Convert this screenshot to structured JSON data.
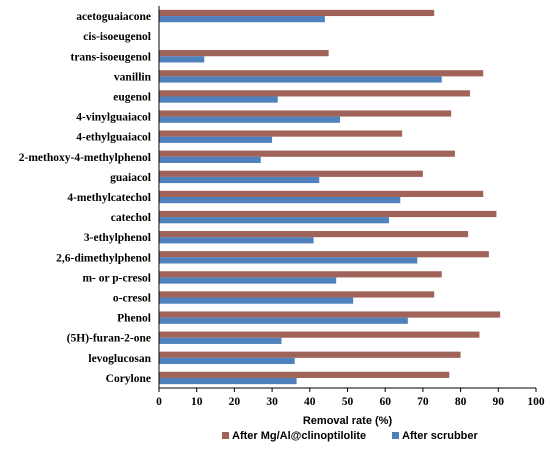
{
  "chart_data": {
    "type": "bar",
    "orientation": "horizontal",
    "categories": [
      "acetoguaiacone",
      "cis-isoeugenol",
      "trans-isoeugenol",
      "vanillin",
      "eugenol",
      "4-vinylguaiacol",
      "4-ethylguaiacol",
      "2-methoxy-4-methylphenol",
      "guaiacol",
      "4-methylcatechol",
      "catechol",
      "3-ethylphenol",
      "2,6-dimethylphenol",
      "m- or p-cresol",
      "o-cresol",
      "Phenol",
      "(5H)-furan-2-one",
      "levoglucosan",
      "Corylone"
    ],
    "series": [
      {
        "name": "After Mg/Al@clinoptilolite",
        "color": "#a0635a",
        "values": [
          73,
          0,
          45,
          86,
          82.5,
          77.5,
          64.5,
          78.5,
          70,
          86,
          89.5,
          82,
          87.5,
          75,
          73,
          90.5,
          85,
          80,
          77
        ]
      },
      {
        "name": "After scrubber",
        "color": "#4f81bd",
        "values": [
          44,
          0,
          12,
          75,
          31.5,
          48,
          30,
          27,
          42.5,
          64,
          61,
          41,
          68.5,
          47,
          51.5,
          66,
          32.5,
          36,
          36.5
        ]
      }
    ],
    "xlabel": "Removal rate (%)",
    "ylabel": "",
    "xlim": [
      0,
      100
    ],
    "xticks": [
      0,
      10,
      20,
      30,
      40,
      50,
      60,
      70,
      80,
      90,
      100
    ],
    "grid": false,
    "legend_position": "bottom"
  }
}
